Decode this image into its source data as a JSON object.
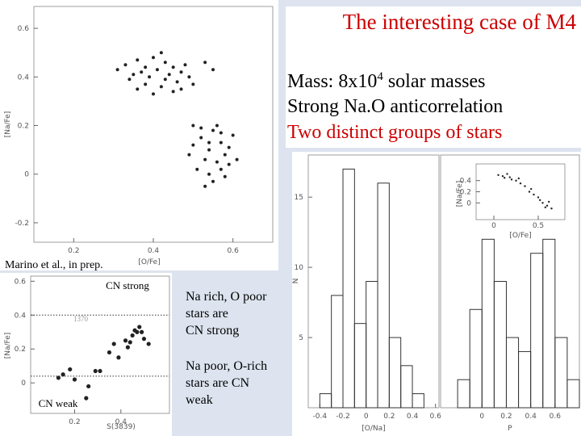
{
  "slide": {
    "title": "The interesting case of M4",
    "mass_prefix": "Mass:  8x10",
    "mass_exp": "4",
    "mass_suffix": " solar masses",
    "line2": "Strong Na.O anticorrelation",
    "line3": "Two distinct groups of stars",
    "caption": "Marino et al., in prep.",
    "note1": [
      "Na rich, O poor",
      "stars are",
      "CN strong"
    ],
    "note2": [
      "Na poor, O-rich",
      "stars are CN",
      "weak"
    ]
  },
  "chart_data": [
    {
      "type": "scatter",
      "xlabel": "[O/Fe]",
      "ylabel": "[Na/Fe]",
      "xlim": [
        0.1,
        0.7
      ],
      "ylim": [
        -0.28,
        0.69
      ],
      "xticks": [
        0.2,
        0.4,
        0.6
      ],
      "yticks": [
        -0.2,
        0,
        0.2,
        0.4,
        0.6
      ],
      "x": [
        0.33,
        0.36,
        0.38,
        0.4,
        0.42,
        0.37,
        0.35,
        0.39,
        0.41,
        0.43,
        0.45,
        0.44,
        0.46,
        0.47,
        0.49,
        0.34,
        0.38,
        0.42,
        0.45,
        0.4,
        0.47,
        0.36,
        0.43,
        0.5,
        0.53,
        0.55,
        0.31,
        0.48,
        0.5,
        0.52,
        0.54,
        0.55,
        0.57,
        0.58,
        0.56,
        0.53,
        0.51,
        0.54,
        0.57,
        0.59,
        0.6,
        0.56,
        0.52,
        0.49,
        0.55,
        0.58,
        0.53,
        0.61,
        0.5,
        0.57,
        0.54,
        0.59
      ],
      "values": [
        0.45,
        0.47,
        0.44,
        0.48,
        0.5,
        0.42,
        0.41,
        0.4,
        0.43,
        0.46,
        0.44,
        0.41,
        0.38,
        0.42,
        0.4,
        0.39,
        0.37,
        0.36,
        0.34,
        0.33,
        0.35,
        0.35,
        0.39,
        0.37,
        0.46,
        0.43,
        0.43,
        0.45,
        0.12,
        0.15,
        0.1,
        0.18,
        0.13,
        0.08,
        0.05,
        0.06,
        0.02,
        0.0,
        0.02,
        0.11,
        0.16,
        0.2,
        0.19,
        0.08,
        -0.03,
        -0.01,
        -0.05,
        0.06,
        0.2,
        0.17,
        0.13,
        0.04
      ]
    },
    {
      "type": "scatter",
      "xlabel": "S(3839)",
      "ylabel": "[Na/Fe]",
      "xlim": [
        0.01,
        0.61
      ],
      "ylim": [
        -0.18,
        0.63
      ],
      "xticks": [
        0.2,
        0.4
      ],
      "yticks": [
        0,
        0.2,
        0.4,
        0.6
      ],
      "hlines": [
        0.4,
        0.04
      ],
      "annotations": [
        "CN strong",
        "CN weak",
        "1370"
      ],
      "x": [
        0.44,
        0.42,
        0.45,
        0.46,
        0.47,
        0.48,
        0.49,
        0.43,
        0.5,
        0.52,
        0.35,
        0.37,
        0.39,
        0.31,
        0.13,
        0.15,
        0.2,
        0.26,
        0.29,
        0.25,
        0.18
      ],
      "values": [
        0.24,
        0.25,
        0.28,
        0.31,
        0.3,
        0.33,
        0.3,
        0.21,
        0.26,
        0.23,
        0.18,
        0.23,
        0.15,
        0.07,
        0.03,
        0.05,
        0.02,
        -0.02,
        0.07,
        -0.09,
        0.08
      ]
    },
    {
      "type": "histogram",
      "xlabel": "[O/Na]",
      "ylabel": "N",
      "xlim": [
        -0.5,
        0.63
      ],
      "ylim": [
        0,
        18
      ],
      "xticks": [
        -0.4,
        -0.2,
        0,
        0.2,
        0.4,
        0.6
      ],
      "yticks": [
        5,
        10,
        15
      ],
      "bins": [
        -0.4,
        -0.3,
        -0.2,
        -0.1,
        0,
        0.1,
        0.2,
        0.3,
        0.4,
        0.5,
        0.6
      ],
      "values": [
        1,
        8,
        17,
        6,
        9,
        16,
        5,
        3,
        1,
        0
      ]
    },
    {
      "type": "histogram",
      "xlabel": "P",
      "xlim": [
        -0.34,
        0.8
      ],
      "ylim": [
        0,
        18
      ],
      "xticks": [
        0,
        0.2,
        0.4,
        0.6
      ],
      "bins": [
        -0.2,
        -0.1,
        0,
        0.1,
        0.2,
        0.3,
        0.4,
        0.5,
        0.6,
        0.7,
        0.8
      ],
      "values": [
        2,
        7,
        12,
        9,
        5,
        4,
        11,
        12,
        5,
        2
      ]
    },
    {
      "type": "scatter",
      "xlabel": "[O/Fe]",
      "ylabel": "[Na/Fe]",
      "xlim": [
        -0.2,
        0.8
      ],
      "ylim": [
        -0.3,
        0.7
      ],
      "xticks": [
        0,
        0.5
      ],
      "yticks": [
        0,
        0.2,
        0.4
      ],
      "x": [
        0.05,
        0.1,
        0.12,
        0.18,
        0.2,
        0.25,
        0.3,
        0.28,
        0.35,
        0.4,
        0.45,
        0.5,
        0.52,
        0.55,
        0.6,
        0.62,
        0.65,
        0.42,
        0.15,
        0.58
      ],
      "values": [
        0.5,
        0.48,
        0.45,
        0.46,
        0.42,
        0.4,
        0.35,
        0.44,
        0.3,
        0.2,
        0.15,
        0.1,
        0.05,
        0.0,
        -0.05,
        0.02,
        -0.1,
        0.25,
        0.52,
        -0.08
      ]
    }
  ]
}
